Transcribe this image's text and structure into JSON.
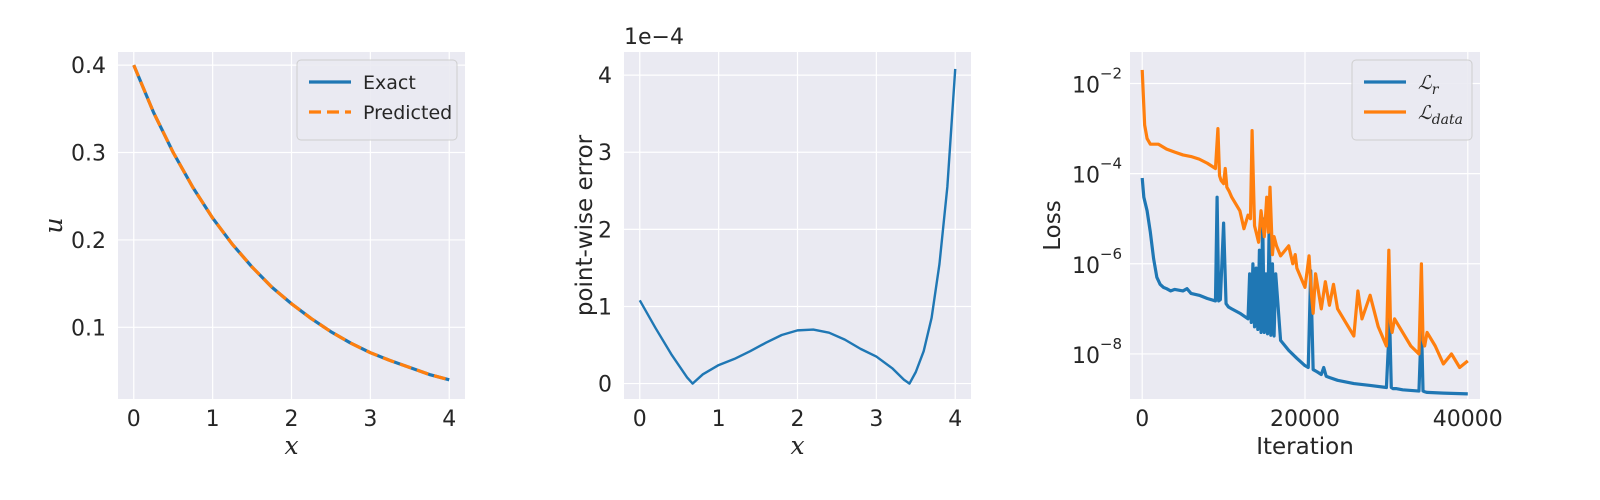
{
  "chart_data": [
    {
      "type": "line",
      "title": "",
      "xlabel": "x",
      "ylabel": "u",
      "xlim": [
        -0.2,
        4.2
      ],
      "ylim": [
        0.018,
        0.415
      ],
      "xticks": [
        0,
        1,
        2,
        3,
        4
      ],
      "yticks": [
        0.1,
        0.2,
        0.3,
        0.4
      ],
      "xtick_labels": [
        "0",
        "1",
        "2",
        "3",
        "4"
      ],
      "ytick_labels": [
        "0.1",
        "0.2",
        "0.3",
        "0.4"
      ],
      "grid": true,
      "legend_position": "upper-right",
      "series": [
        {
          "name": "Exact",
          "color": "#1f77b4",
          "style": "solid",
          "x": [
            0,
            0.25,
            0.5,
            0.75,
            1.0,
            1.25,
            1.5,
            1.75,
            2.0,
            2.25,
            2.5,
            2.75,
            3.0,
            3.25,
            3.5,
            3.75,
            4.0
          ],
          "y": [
            0.4,
            0.346,
            0.3,
            0.26,
            0.225,
            0.195,
            0.169,
            0.146,
            0.127,
            0.11,
            0.095,
            0.082,
            0.071,
            0.062,
            0.054,
            0.046,
            0.04
          ]
        },
        {
          "name": "Predicted",
          "color": "#ff7f0e",
          "style": "dashed",
          "x": [
            0,
            0.25,
            0.5,
            0.75,
            1.0,
            1.25,
            1.5,
            1.75,
            2.0,
            2.25,
            2.5,
            2.75,
            3.0,
            3.25,
            3.5,
            3.75,
            4.0
          ],
          "y": [
            0.4,
            0.346,
            0.3,
            0.26,
            0.225,
            0.195,
            0.169,
            0.146,
            0.127,
            0.11,
            0.095,
            0.082,
            0.071,
            0.062,
            0.054,
            0.046,
            0.04
          ]
        }
      ]
    },
    {
      "type": "line",
      "title": "",
      "xlabel": "x",
      "ylabel": "point-wise error",
      "offset_text": "1e−4",
      "xlim": [
        -0.2,
        4.2
      ],
      "ylim": [
        -0.2,
        4.3
      ],
      "xticks": [
        0,
        1,
        2,
        3,
        4
      ],
      "yticks": [
        0,
        1,
        2,
        3,
        4
      ],
      "xtick_labels": [
        "0",
        "1",
        "2",
        "3",
        "4"
      ],
      "ytick_labels": [
        "0",
        "1",
        "2",
        "3",
        "4"
      ],
      "grid": true,
      "series": [
        {
          "color": "#1f77b4",
          "style": "solid",
          "x": [
            0,
            0.2,
            0.4,
            0.6,
            0.67,
            0.8,
            1.0,
            1.2,
            1.4,
            1.6,
            1.8,
            2.0,
            2.2,
            2.4,
            2.6,
            2.8,
            3.0,
            3.2,
            3.35,
            3.42,
            3.5,
            3.6,
            3.7,
            3.8,
            3.9,
            4.0
          ],
          "y": [
            1.08,
            0.72,
            0.38,
            0.08,
            0.0,
            0.12,
            0.24,
            0.32,
            0.42,
            0.53,
            0.63,
            0.69,
            0.7,
            0.66,
            0.57,
            0.45,
            0.35,
            0.2,
            0.05,
            0.0,
            0.15,
            0.42,
            0.85,
            1.55,
            2.55,
            4.08
          ]
        }
      ]
    },
    {
      "type": "line",
      "title": "",
      "xlabel": "Iteration",
      "ylabel": "Loss",
      "y_scale": "log",
      "xlim": [
        -1500,
        41500
      ],
      "ylim": [
        1e-09,
        0.05
      ],
      "xticks": [
        0,
        20000,
        40000
      ],
      "xtick_labels": [
        "0",
        "20000",
        "40000"
      ],
      "yticks": [
        1e-08,
        1e-06,
        0.0001,
        0.01
      ],
      "ytick_labels": [
        {
          "base": "10",
          "exp": "−8"
        },
        {
          "base": "10",
          "exp": "−6"
        },
        {
          "base": "10",
          "exp": "−4"
        },
        {
          "base": "10",
          "exp": "−2"
        }
      ],
      "grid": true,
      "legend_position": "upper-right",
      "series": [
        {
          "name": "r",
          "legend_symbol": "ℒ",
          "legend_sub": "r",
          "color": "#1f77b4",
          "style": "solid",
          "x": [
            0,
            200,
            600,
            1000,
            1400,
            1800,
            2200,
            2600,
            3000,
            3500,
            4000,
            5000,
            5500,
            6000,
            7000,
            8000,
            9000,
            9200,
            9400,
            9600,
            10000,
            10300,
            10600,
            11000,
            12000,
            13000,
            13200,
            13400,
            13600,
            13800,
            14000,
            14200,
            14400,
            14600,
            14800,
            15000,
            15200,
            15400,
            15600,
            15800,
            16000,
            16200,
            16400,
            17000,
            18000,
            19000,
            20000,
            20400,
            20700,
            21000,
            21500,
            22000,
            22300,
            22600,
            23000,
            24000,
            26000,
            28000,
            30000,
            30400,
            30600,
            30800,
            31200,
            32000,
            34000,
            34300,
            34500,
            34700,
            35000,
            37000,
            40000
          ],
          "y": [
            8e-05,
            3e-05,
            1.5e-05,
            5e-06,
            1.3e-06,
            5e-07,
            3.5e-07,
            3e-07,
            2.8e-07,
            2.5e-07,
            2.7e-07,
            2.5e-07,
            2.8e-07,
            2.2e-07,
            2e-07,
            1.7e-07,
            1.5e-07,
            3e-05,
            1.5e-07,
            1.6e-07,
            8e-06,
            1.3e-07,
            1.1e-07,
            1e-07,
            8e-08,
            6e-08,
            6e-07,
            5e-08,
            1e-06,
            4e-08,
            8e-07,
            3.5e-08,
            2e-06,
            3e-08,
            1e-05,
            3e-08,
            6e-07,
            2.8e-08,
            8e-06,
            2.6e-08,
            1e-06,
            2.5e-08,
            6e-07,
            2e-08,
            1.2e-08,
            8e-09,
            5.5e-09,
            5e-09,
            7e-07,
            4.5e-09,
            4e-09,
            3.5e-09,
            5e-09,
            3.2e-09,
            3e-09,
            2.6e-09,
            2.2e-09,
            2e-09,
            1.8e-09,
            6e-08,
            1.8e-09,
            1.7e-09,
            1.7e-09,
            1.6e-09,
            1.5e-09,
            5e-08,
            1.5e-09,
            1.45e-09,
            1.4e-09,
            1.35e-09,
            1.3e-09
          ]
        },
        {
          "name": "data",
          "legend_symbol": "ℒ",
          "legend_sub": "data",
          "color": "#ff7f0e",
          "style": "solid",
          "x": [
            0,
            300,
            600,
            1000,
            1500,
            2000,
            3000,
            4000,
            5000,
            6000,
            7000,
            8000,
            9000,
            9300,
            9500,
            9700,
            10000,
            10200,
            10400,
            10700,
            11000,
            12000,
            12500,
            13000,
            13300,
            13500,
            13800,
            14000,
            14300,
            14600,
            15000,
            15300,
            15500,
            15700,
            16000,
            16200,
            16500,
            17000,
            18000,
            18500,
            18800,
            19000,
            20000,
            20500,
            20800,
            21000,
            21300,
            22000,
            22500,
            23000,
            23500,
            24000,
            25000,
            26000,
            26500,
            27000,
            28000,
            29000,
            30000,
            30300,
            30500,
            30700,
            31000,
            32000,
            33000,
            34000,
            34300,
            34500,
            34700,
            35000,
            36000,
            37000,
            38000,
            39000,
            40000
          ],
          "y": [
            0.02,
            0.0012,
            0.0006,
            0.00045,
            0.00045,
            0.00045,
            0.00035,
            0.0003,
            0.00026,
            0.00024,
            0.00021,
            0.00017,
            0.00013,
            0.001,
            9e-05,
            7e-05,
            6e-05,
            0.00013,
            5e-05,
            4e-05,
            3e-05,
            1.5e-05,
            6e-06,
            1.2e-05,
            1e-05,
            0.0009,
            7e-06,
            5e-06,
            3e-06,
            1.5e-05,
            4e-06,
            3e-05,
            5e-06,
            5e-05,
            1.6e-06,
            4e-06,
            2.5e-06,
            1.5e-06,
            2.5e-06,
            1e-06,
            1.6e-06,
            8e-07,
            3e-07,
            1.5e-06,
            2e-07,
            8e-08,
            6e-07,
            1e-07,
            4e-07,
            1.2e-07,
            3.5e-07,
            1e-07,
            5e-08,
            2.5e-08,
            2.5e-07,
            6e-08,
            2e-07,
            4e-08,
            1.5e-08,
            2e-06,
            5e-08,
            3e-08,
            6e-08,
            3e-08,
            1.5e-08,
            1e-08,
            1e-06,
            2e-08,
            1.5e-08,
            3e-08,
            1.5e-08,
            6e-09,
            1e-08,
            5e-09,
            7e-09
          ]
        }
      ]
    }
  ]
}
